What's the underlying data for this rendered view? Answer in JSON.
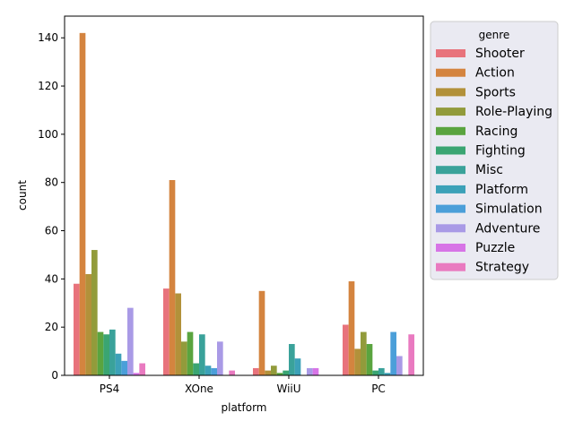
{
  "chart_data": {
    "type": "bar",
    "xlabel": "platform",
    "ylabel": "count",
    "categories": [
      "PS4",
      "XOne",
      "WiiU",
      "PC"
    ],
    "ylim": [
      0,
      149
    ],
    "yticks": [
      0,
      20,
      40,
      60,
      80,
      100,
      120,
      140
    ],
    "legend": {
      "title": "genre",
      "placement": "outside-right-top"
    },
    "grid": false,
    "series": [
      {
        "name": "Shooter",
        "color": "#e8737c",
        "values": [
          38,
          36,
          3,
          21
        ]
      },
      {
        "name": "Action",
        "color": "#d4843f",
        "values": [
          142,
          81,
          35,
          39
        ]
      },
      {
        "name": "Sports",
        "color": "#b2913a",
        "values": [
          42,
          34,
          2,
          11
        ]
      },
      {
        "name": "Role-Playing",
        "color": "#929b3b",
        "values": [
          52,
          14,
          4,
          18
        ]
      },
      {
        "name": "Racing",
        "color": "#5aa43f",
        "values": [
          18,
          18,
          1,
          13
        ]
      },
      {
        "name": "Fighting",
        "color": "#3aa572",
        "values": [
          17,
          5,
          2,
          2
        ]
      },
      {
        "name": "Misc",
        "color": "#3aa29a",
        "values": [
          19,
          17,
          13,
          3
        ]
      },
      {
        "name": "Platform",
        "color": "#3ca1b8",
        "values": [
          9,
          4,
          7,
          1
        ]
      },
      {
        "name": "Simulation",
        "color": "#4b9fd9",
        "values": [
          6,
          3,
          0,
          18
        ]
      },
      {
        "name": "Adventure",
        "color": "#a99ae6",
        "values": [
          28,
          14,
          3,
          8
        ]
      },
      {
        "name": "Puzzle",
        "color": "#d774e6",
        "values": [
          1,
          0,
          3,
          0
        ]
      },
      {
        "name": "Strategy",
        "color": "#e97ac0",
        "values": [
          5,
          2,
          0,
          17
        ]
      }
    ]
  }
}
